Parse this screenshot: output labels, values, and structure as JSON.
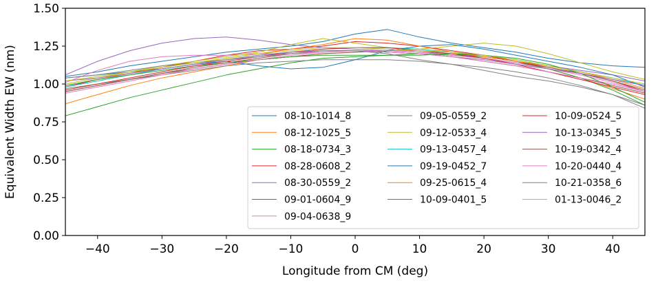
{
  "chart_data": {
    "type": "line",
    "title": "",
    "xlabel": "Longitude from CM (deg)",
    "ylabel": "Equivalent Width EW (nm)",
    "xlim": [
      -45,
      45
    ],
    "ylim": [
      0.0,
      1.5
    ],
    "xticks": [
      -40,
      -30,
      -20,
      -10,
      0,
      10,
      20,
      30,
      40
    ],
    "xtick_labels": [
      "−40",
      "−30",
      "−20",
      "−10",
      "0",
      "10",
      "20",
      "30",
      "40"
    ],
    "yticks": [
      0.0,
      0.25,
      0.5,
      0.75,
      1.0,
      1.25,
      1.5
    ],
    "ytick_labels": [
      "0.00",
      "0.25",
      "0.50",
      "0.75",
      "1.00",
      "1.25",
      "1.50"
    ],
    "grid": false,
    "legend_position": "lower-right",
    "legend_columns": 3,
    "x": [
      -45,
      -40,
      -35,
      -30,
      -25,
      -20,
      -15,
      -10,
      -5,
      0,
      5,
      10,
      15,
      20,
      25,
      30,
      35,
      40,
      45
    ],
    "series": [
      {
        "name": "08-10-1014_8",
        "color": "#1f77b4",
        "values": [
          1.05,
          1.08,
          1.12,
          1.15,
          1.18,
          1.21,
          1.23,
          1.25,
          1.28,
          1.33,
          1.36,
          1.31,
          1.27,
          1.24,
          1.21,
          1.17,
          1.14,
          1.12,
          1.11
        ]
      },
      {
        "name": "08-12-1025_5",
        "color": "#ff7f0e",
        "values": [
          0.87,
          0.93,
          0.99,
          1.04,
          1.08,
          1.12,
          1.16,
          1.18,
          1.2,
          1.21,
          1.22,
          1.22,
          1.21,
          1.19,
          1.15,
          1.1,
          1.04,
          0.97,
          0.9
        ]
      },
      {
        "name": "08-18-0734_3",
        "color": "#2ca02c",
        "values": [
          0.79,
          0.85,
          0.91,
          0.96,
          1.01,
          1.06,
          1.1,
          1.14,
          1.17,
          1.18,
          1.19,
          1.2,
          1.19,
          1.18,
          1.15,
          1.1,
          1.04,
          0.96,
          0.86
        ]
      },
      {
        "name": "08-28-0608_2",
        "color": "#d62728",
        "values": [
          0.98,
          1.03,
          1.07,
          1.11,
          1.15,
          1.19,
          1.22,
          1.23,
          1.25,
          1.28,
          1.27,
          1.25,
          1.22,
          1.19,
          1.15,
          1.11,
          1.07,
          1.02,
          0.95
        ]
      },
      {
        "name": "08-30-0559_2",
        "color": "#9467bd",
        "values": [
          1.06,
          1.15,
          1.22,
          1.27,
          1.3,
          1.31,
          1.29,
          1.26,
          1.24,
          1.23,
          1.22,
          1.21,
          1.2,
          1.18,
          1.15,
          1.12,
          1.09,
          1.06,
          1.02
        ]
      },
      {
        "name": "09-01-0604_9",
        "color": "#8c564b",
        "values": [
          0.95,
          0.99,
          1.03,
          1.07,
          1.1,
          1.13,
          1.16,
          1.18,
          1.2,
          1.21,
          1.22,
          1.21,
          1.19,
          1.17,
          1.14,
          1.11,
          1.07,
          1.02,
          0.96
        ]
      },
      {
        "name": "09-04-0638_9",
        "color": "#e377c2",
        "values": [
          1.01,
          1.09,
          1.15,
          1.18,
          1.19,
          1.19,
          1.2,
          1.2,
          1.21,
          1.22,
          1.22,
          1.21,
          1.19,
          1.17,
          1.14,
          1.1,
          1.06,
          1.01,
          0.95
        ]
      },
      {
        "name": "09-05-0559_2",
        "color": "#7f7f7f",
        "values": [
          0.97,
          1.0,
          1.03,
          1.06,
          1.09,
          1.12,
          1.14,
          1.15,
          1.16,
          1.16,
          1.16,
          1.15,
          1.13,
          1.11,
          1.08,
          1.04,
          0.99,
          0.93,
          0.84
        ]
      },
      {
        "name": "09-12-0533_4",
        "color": "#bcbd22",
        "values": [
          1.0,
          1.04,
          1.08,
          1.12,
          1.15,
          1.18,
          1.21,
          1.26,
          1.3,
          1.27,
          1.24,
          1.23,
          1.25,
          1.27,
          1.25,
          1.2,
          1.14,
          1.08,
          1.03
        ]
      },
      {
        "name": "09-13-0457_4",
        "color": "#17becf",
        "values": [
          0.98,
          1.02,
          1.06,
          1.1,
          1.13,
          1.16,
          1.19,
          1.21,
          1.23,
          1.24,
          1.24,
          1.23,
          1.21,
          1.19,
          1.16,
          1.12,
          1.08,
          1.04,
          0.99
        ]
      },
      {
        "name": "09-19-0452_7",
        "color": "#1f77b4",
        "values": [
          1.04,
          1.06,
          1.08,
          1.1,
          1.13,
          1.15,
          1.12,
          1.1,
          1.11,
          1.16,
          1.22,
          1.25,
          1.26,
          1.23,
          1.19,
          1.15,
          1.11,
          1.06,
          0.98
        ]
      },
      {
        "name": "09-25-0615_4",
        "color": "#ff7f0e",
        "values": [
          0.99,
          1.03,
          1.07,
          1.11,
          1.14,
          1.17,
          1.2,
          1.23,
          1.26,
          1.3,
          1.29,
          1.25,
          1.21,
          1.18,
          1.15,
          1.12,
          1.08,
          1.03,
          0.97
        ]
      },
      {
        "name": "10-09-0401_5",
        "color": "#2ca02c",
        "values": [
          0.99,
          1.03,
          1.06,
          1.09,
          1.12,
          1.14,
          1.16,
          1.18,
          1.19,
          1.19,
          1.19,
          1.19,
          1.2,
          1.19,
          1.17,
          1.13,
          1.07,
          0.98,
          0.88
        ]
      },
      {
        "name": "10-09-0524_5",
        "color": "#d62728",
        "values": [
          0.96,
          1.0,
          1.04,
          1.08,
          1.12,
          1.15,
          1.18,
          1.21,
          1.23,
          1.24,
          1.24,
          1.22,
          1.2,
          1.17,
          1.13,
          1.08,
          1.03,
          0.98,
          0.93
        ]
      },
      {
        "name": "10-13-0345_5",
        "color": "#9467bd",
        "values": [
          1.02,
          1.04,
          1.07,
          1.1,
          1.13,
          1.16,
          1.19,
          1.21,
          1.22,
          1.22,
          1.21,
          1.2,
          1.18,
          1.16,
          1.13,
          1.1,
          1.07,
          1.03,
          0.99
        ]
      },
      {
        "name": "10-19-0342_4",
        "color": "#8c564b",
        "values": [
          0.95,
          0.99,
          1.03,
          1.07,
          1.11,
          1.14,
          1.17,
          1.2,
          1.22,
          1.22,
          1.21,
          1.2,
          1.18,
          1.15,
          1.12,
          1.08,
          1.04,
          0.99,
          0.94
        ]
      },
      {
        "name": "10-20-0440_4",
        "color": "#e377c2",
        "values": [
          0.94,
          0.98,
          1.02,
          1.06,
          1.1,
          1.13,
          1.16,
          1.19,
          1.21,
          1.22,
          1.21,
          1.2,
          1.18,
          1.15,
          1.12,
          1.08,
          1.04,
          1.0,
          0.95
        ]
      },
      {
        "name": "10-21-0358_6",
        "color": "#7f7f7f",
        "values": [
          1.04,
          1.06,
          1.09,
          1.12,
          1.14,
          1.16,
          1.18,
          1.2,
          1.22,
          1.22,
          1.2,
          1.16,
          1.13,
          1.09,
          1.05,
          1.02,
          0.98,
          0.93,
          0.86
        ]
      },
      {
        "name": "01-13-0046_2",
        "color": "#bcbd22",
        "values": [
          1.02,
          1.05,
          1.08,
          1.11,
          1.14,
          1.17,
          1.2,
          1.22,
          1.24,
          1.24,
          1.23,
          1.22,
          1.21,
          1.19,
          1.16,
          1.12,
          1.08,
          1.04,
          1.0
        ]
      }
    ]
  }
}
